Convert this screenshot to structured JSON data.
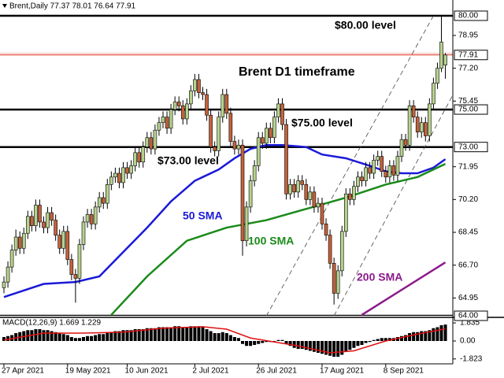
{
  "chart_data": {
    "type": "candlestick",
    "title": "Brent,Daily 77.37 78.01 76.64 77.91",
    "x_labels": [
      {
        "index": 0,
        "label": "27 Apr 2021"
      },
      {
        "index": 16,
        "label": "19 May 2021"
      },
      {
        "index": 31,
        "label": "10 Jun 2021"
      },
      {
        "index": 48,
        "label": "2 Jul 2021"
      },
      {
        "index": 64,
        "label": "26 Jul 2021"
      },
      {
        "index": 80,
        "label": "17 Aug 2021"
      },
      {
        "index": 96,
        "label": "8 Sep 2021"
      }
    ],
    "ohlc": [
      [
        65.5,
        66.1,
        65.2,
        65.8
      ],
      [
        65.8,
        66.9,
        65.5,
        66.6
      ],
      [
        66.6,
        67.8,
        66.3,
        67.5
      ],
      [
        67.5,
        68.6,
        67.2,
        68.2
      ],
      [
        68.2,
        68.5,
        67.3,
        67.6
      ],
      [
        67.6,
        68.7,
        67.3,
        68.4
      ],
      [
        68.4,
        69.6,
        68.1,
        69.3
      ],
      [
        69.3,
        69.6,
        68.5,
        68.8
      ],
      [
        68.8,
        70.2,
        68.5,
        69.9
      ],
      [
        69.9,
        70.2,
        68.7,
        69.0
      ],
      [
        69.0,
        69.3,
        68.4,
        68.7
      ],
      [
        68.7,
        69.8,
        68.4,
        69.5
      ],
      [
        69.5,
        69.8,
        68.8,
        69.1
      ],
      [
        69.1,
        69.4,
        68.0,
        68.3
      ],
      [
        68.3,
        68.6,
        67.3,
        67.6
      ],
      [
        67.6,
        68.8,
        67.3,
        68.5
      ],
      [
        68.5,
        68.8,
        66.7,
        67.0
      ],
      [
        67.0,
        67.3,
        65.9,
        66.2
      ],
      [
        66.2,
        66.5,
        64.7,
        66.0
      ],
      [
        66.0,
        68.1,
        65.7,
        67.8
      ],
      [
        67.8,
        69.3,
        67.5,
        69.0
      ],
      [
        69.0,
        69.7,
        68.7,
        69.4
      ],
      [
        69.4,
        69.7,
        68.6,
        68.9
      ],
      [
        68.9,
        70.1,
        68.6,
        69.8
      ],
      [
        69.8,
        70.6,
        69.5,
        70.3
      ],
      [
        70.3,
        70.6,
        69.7,
        70.0
      ],
      [
        70.0,
        71.3,
        69.7,
        71.0
      ],
      [
        71.0,
        71.7,
        70.7,
        71.4
      ],
      [
        71.4,
        71.9,
        71.1,
        71.6
      ],
      [
        71.6,
        71.9,
        70.8,
        71.1
      ],
      [
        71.1,
        72.2,
        70.8,
        71.9
      ],
      [
        71.9,
        72.2,
        71.3,
        71.6
      ],
      [
        71.6,
        72.3,
        71.3,
        72.0
      ],
      [
        72.0,
        73.0,
        71.7,
        72.7
      ],
      [
        72.7,
        73.0,
        71.9,
        72.2
      ],
      [
        72.2,
        73.3,
        71.9,
        73.0
      ],
      [
        73.0,
        73.8,
        72.7,
        73.5
      ],
      [
        73.5,
        73.8,
        72.6,
        72.9
      ],
      [
        72.9,
        74.2,
        72.6,
        73.9
      ],
      [
        73.9,
        74.6,
        73.6,
        74.3
      ],
      [
        74.3,
        74.9,
        74.0,
        74.6
      ],
      [
        74.6,
        74.9,
        73.7,
        74.0
      ],
      [
        74.0,
        75.3,
        73.7,
        75.0
      ],
      [
        75.0,
        75.7,
        74.7,
        75.4
      ],
      [
        75.4,
        75.7,
        74.9,
        75.2
      ],
      [
        75.2,
        75.5,
        74.2,
        74.5
      ],
      [
        74.5,
        75.6,
        74.2,
        75.3
      ],
      [
        75.3,
        76.3,
        75.0,
        76.0
      ],
      [
        76.0,
        76.9,
        75.7,
        76.6
      ],
      [
        76.6,
        76.9,
        75.6,
        75.9
      ],
      [
        75.9,
        76.2,
        75.5,
        75.8
      ],
      [
        75.8,
        76.1,
        74.4,
        74.7
      ],
      [
        74.7,
        75.0,
        72.7,
        73.0
      ],
      [
        73.0,
        73.3,
        72.5,
        72.8
      ],
      [
        72.8,
        74.9,
        72.5,
        74.6
      ],
      [
        74.6,
        76.1,
        74.3,
        75.8
      ],
      [
        75.8,
        76.1,
        74.5,
        74.8
      ],
      [
        74.8,
        75.1,
        73.0,
        73.3
      ],
      [
        73.3,
        73.6,
        72.6,
        72.9
      ],
      [
        72.9,
        73.4,
        72.6,
        73.1
      ],
      [
        73.1,
        73.4,
        67.2,
        68.0
      ],
      [
        68.0,
        70.1,
        67.7,
        69.8
      ],
      [
        69.8,
        71.5,
        69.5,
        71.2
      ],
      [
        71.2,
        72.3,
        70.9,
        72.0
      ],
      [
        72.0,
        73.8,
        71.7,
        73.5
      ],
      [
        73.5,
        73.8,
        72.9,
        73.2
      ],
      [
        73.2,
        74.3,
        72.9,
        74.0
      ],
      [
        74.0,
        74.3,
        73.2,
        73.5
      ],
      [
        73.5,
        74.9,
        73.2,
        74.6
      ],
      [
        74.6,
        75.6,
        74.3,
        75.3
      ],
      [
        75.3,
        75.6,
        73.9,
        74.2
      ],
      [
        74.2,
        74.5,
        70.2,
        70.5
      ],
      [
        70.5,
        71.3,
        70.2,
        71.0
      ],
      [
        71.0,
        71.3,
        70.3,
        70.6
      ],
      [
        70.6,
        71.5,
        70.3,
        71.2
      ],
      [
        71.2,
        71.5,
        70.7,
        71.0
      ],
      [
        71.0,
        71.3,
        69.9,
        70.2
      ],
      [
        70.2,
        70.9,
        69.9,
        70.6
      ],
      [
        70.6,
        70.9,
        69.5,
        69.8
      ],
      [
        69.8,
        70.3,
        69.5,
        70.0
      ],
      [
        70.0,
        70.3,
        68.6,
        68.9
      ],
      [
        68.9,
        69.2,
        68.0,
        68.3
      ],
      [
        68.3,
        68.6,
        66.5,
        66.8
      ],
      [
        66.8,
        67.1,
        64.6,
        65.2
      ],
      [
        65.2,
        66.7,
        64.9,
        66.4
      ],
      [
        66.4,
        68.8,
        66.1,
        68.5
      ],
      [
        68.5,
        70.8,
        68.2,
        70.5
      ],
      [
        70.5,
        70.8,
        69.9,
        70.2
      ],
      [
        70.2,
        71.2,
        69.9,
        70.9
      ],
      [
        70.9,
        71.7,
        70.6,
        71.4
      ],
      [
        71.4,
        71.7,
        70.9,
        71.2
      ],
      [
        71.2,
        72.2,
        70.9,
        71.9
      ],
      [
        71.9,
        72.2,
        71.3,
        71.6
      ],
      [
        71.6,
        72.6,
        71.3,
        72.3
      ],
      [
        72.3,
        72.8,
        72.0,
        72.5
      ],
      [
        72.5,
        72.8,
        71.4,
        71.7
      ],
      [
        71.7,
        72.0,
        71.1,
        71.4
      ],
      [
        71.4,
        72.3,
        71.1,
        72.0
      ],
      [
        72.0,
        72.3,
        71.2,
        71.5
      ],
      [
        71.5,
        72.8,
        71.2,
        72.5
      ],
      [
        72.5,
        73.7,
        72.2,
        73.4
      ],
      [
        73.4,
        73.7,
        72.8,
        73.1
      ],
      [
        73.1,
        75.5,
        72.8,
        75.2
      ],
      [
        75.2,
        75.5,
        74.3,
        74.6
      ],
      [
        74.6,
        74.9,
        73.5,
        73.8
      ],
      [
        73.8,
        74.6,
        73.5,
        74.3
      ],
      [
        74.3,
        74.6,
        73.3,
        73.6
      ],
      [
        73.6,
        75.6,
        73.3,
        75.3
      ],
      [
        75.3,
        76.7,
        75.0,
        76.4
      ],
      [
        76.4,
        77.5,
        76.1,
        77.2
      ],
      [
        77.2,
        80.0,
        77.0,
        78.6
      ],
      [
        77.37,
        78.01,
        76.64,
        77.91
      ]
    ],
    "bull_color": "#b7d28c",
    "bear_color": "#c4623c",
    "ylim": [
      64,
      80
    ],
    "yticks": [
      {
        "value": 78.95,
        "label": "78.95"
      },
      {
        "value": 77.2,
        "label": "77.20"
      },
      {
        "value": 75.45,
        "label": "75.45"
      },
      {
        "value": 71.95,
        "label": "71.95"
      },
      {
        "value": 70.2,
        "label": "70.20"
      },
      {
        "value": 68.45,
        "label": "68.45"
      },
      {
        "value": 66.7,
        "label": "66.70"
      },
      {
        "value": 64.95,
        "label": "64.95"
      }
    ],
    "levels": [
      {
        "value": 80,
        "label": "80.00"
      },
      {
        "value": 75,
        "label": "75.00"
      },
      {
        "value": 73,
        "label": "73.00"
      },
      {
        "value": 64,
        "label": "64.00"
      }
    ],
    "current_price": {
      "value": 77.91,
      "label": "77.91",
      "color": "#e03020"
    },
    "lines": [
      {
        "name": "50 SMA",
        "color": "#1a1ad8",
        "x": [
          0,
          10,
          18,
          24,
          30,
          36,
          42,
          48,
          54,
          58,
          62,
          66,
          70,
          76,
          80,
          86,
          92,
          96,
          100,
          104,
          108,
          111
        ],
        "values": [
          65.0,
          65.7,
          65.8,
          66.1,
          67.4,
          68.7,
          70.1,
          71.2,
          71.8,
          72.4,
          72.9,
          73.1,
          73.1,
          73.0,
          72.6,
          72.4,
          72.0,
          71.7,
          71.6,
          71.6,
          71.9,
          72.35
        ]
      },
      {
        "name": "100 SMA",
        "color": "#1a8a1a",
        "x": [
          27,
          36,
          46,
          56,
          66,
          76,
          86,
          96,
          104,
          111
        ],
        "values": [
          64.05,
          66.1,
          68.0,
          68.7,
          69.1,
          69.7,
          70.3,
          71.0,
          71.4,
          72.1
        ]
      },
      {
        "name": "200 SMA",
        "color": "#8b1a8b",
        "x": [
          90,
          111
        ],
        "values": [
          64.05,
          66.85
        ]
      }
    ],
    "trendlines": [
      {
        "x": [
          66,
          108
        ],
        "values": [
          64,
          80
        ]
      },
      {
        "x": [
          83,
          117
        ],
        "values": [
          64,
          77.4
        ]
      }
    ],
    "annotations": [
      "$80.00 level",
      "Brent D1 timeframe",
      "$75.00 level",
      "$73.00 level"
    ],
    "macd": {
      "label": "MACD(12,26,9) 1.669 1.229",
      "ylim": [
        -2.32,
        2.32
      ],
      "yticks": [
        {
          "value": 1.835,
          "label": "1.835"
        },
        {
          "value": 0,
          "label": "0.00"
        },
        {
          "value": -1.823,
          "label": "-1.823"
        }
      ],
      "histogram": [
        0.4,
        0.5,
        0.6,
        0.8,
        0.9,
        1.0,
        1.1,
        1.1,
        1.2,
        1.2,
        1.1,
        1.1,
        1.0,
        0.9,
        0.8,
        0.7,
        0.6,
        0.4,
        0.3,
        0.3,
        0.4,
        0.5,
        0.5,
        0.6,
        0.7,
        0.7,
        0.8,
        0.9,
        1.0,
        1.0,
        1.1,
        1.1,
        1.1,
        1.2,
        1.2,
        1.2,
        1.3,
        1.3,
        1.3,
        1.4,
        1.4,
        1.4,
        1.4,
        1.5,
        1.5,
        1.4,
        1.4,
        1.5,
        1.5,
        1.5,
        1.4,
        1.2,
        1.0,
        0.8,
        0.8,
        0.9,
        0.8,
        0.6,
        0.4,
        0.3,
        -0.3,
        -0.5,
        -0.5,
        -0.4,
        -0.3,
        -0.2,
        -0.1,
        -0.1,
        0.0,
        0.1,
        0.1,
        -0.3,
        -0.5,
        -0.7,
        -0.8,
        -0.8,
        -0.9,
        -1.0,
        -1.1,
        -1.2,
        -1.3,
        -1.4,
        -1.5,
        -1.6,
        -1.6,
        -1.4,
        -1.1,
        -0.9,
        -0.7,
        -0.5,
        -0.4,
        -0.2,
        -0.1,
        0.1,
        0.2,
        0.3,
        0.3,
        0.3,
        0.3,
        0.4,
        0.5,
        0.6,
        0.8,
        0.9,
        0.9,
        1.0,
        1.0,
        1.1,
        1.3,
        1.4,
        1.6,
        1.669
      ],
      "signal": {
        "color": "#e01010",
        "x": [
          0,
          10,
          20,
          30,
          40,
          50,
          56,
          62,
          68,
          74,
          82,
          88,
          96,
          104,
          111
        ],
        "values": [
          0.1,
          0.8,
          0.8,
          0.9,
          1.3,
          1.45,
          1.2,
          0.3,
          -0.1,
          -0.5,
          -1.2,
          -1.0,
          0.0,
          0.7,
          1.229
        ]
      }
    }
  }
}
